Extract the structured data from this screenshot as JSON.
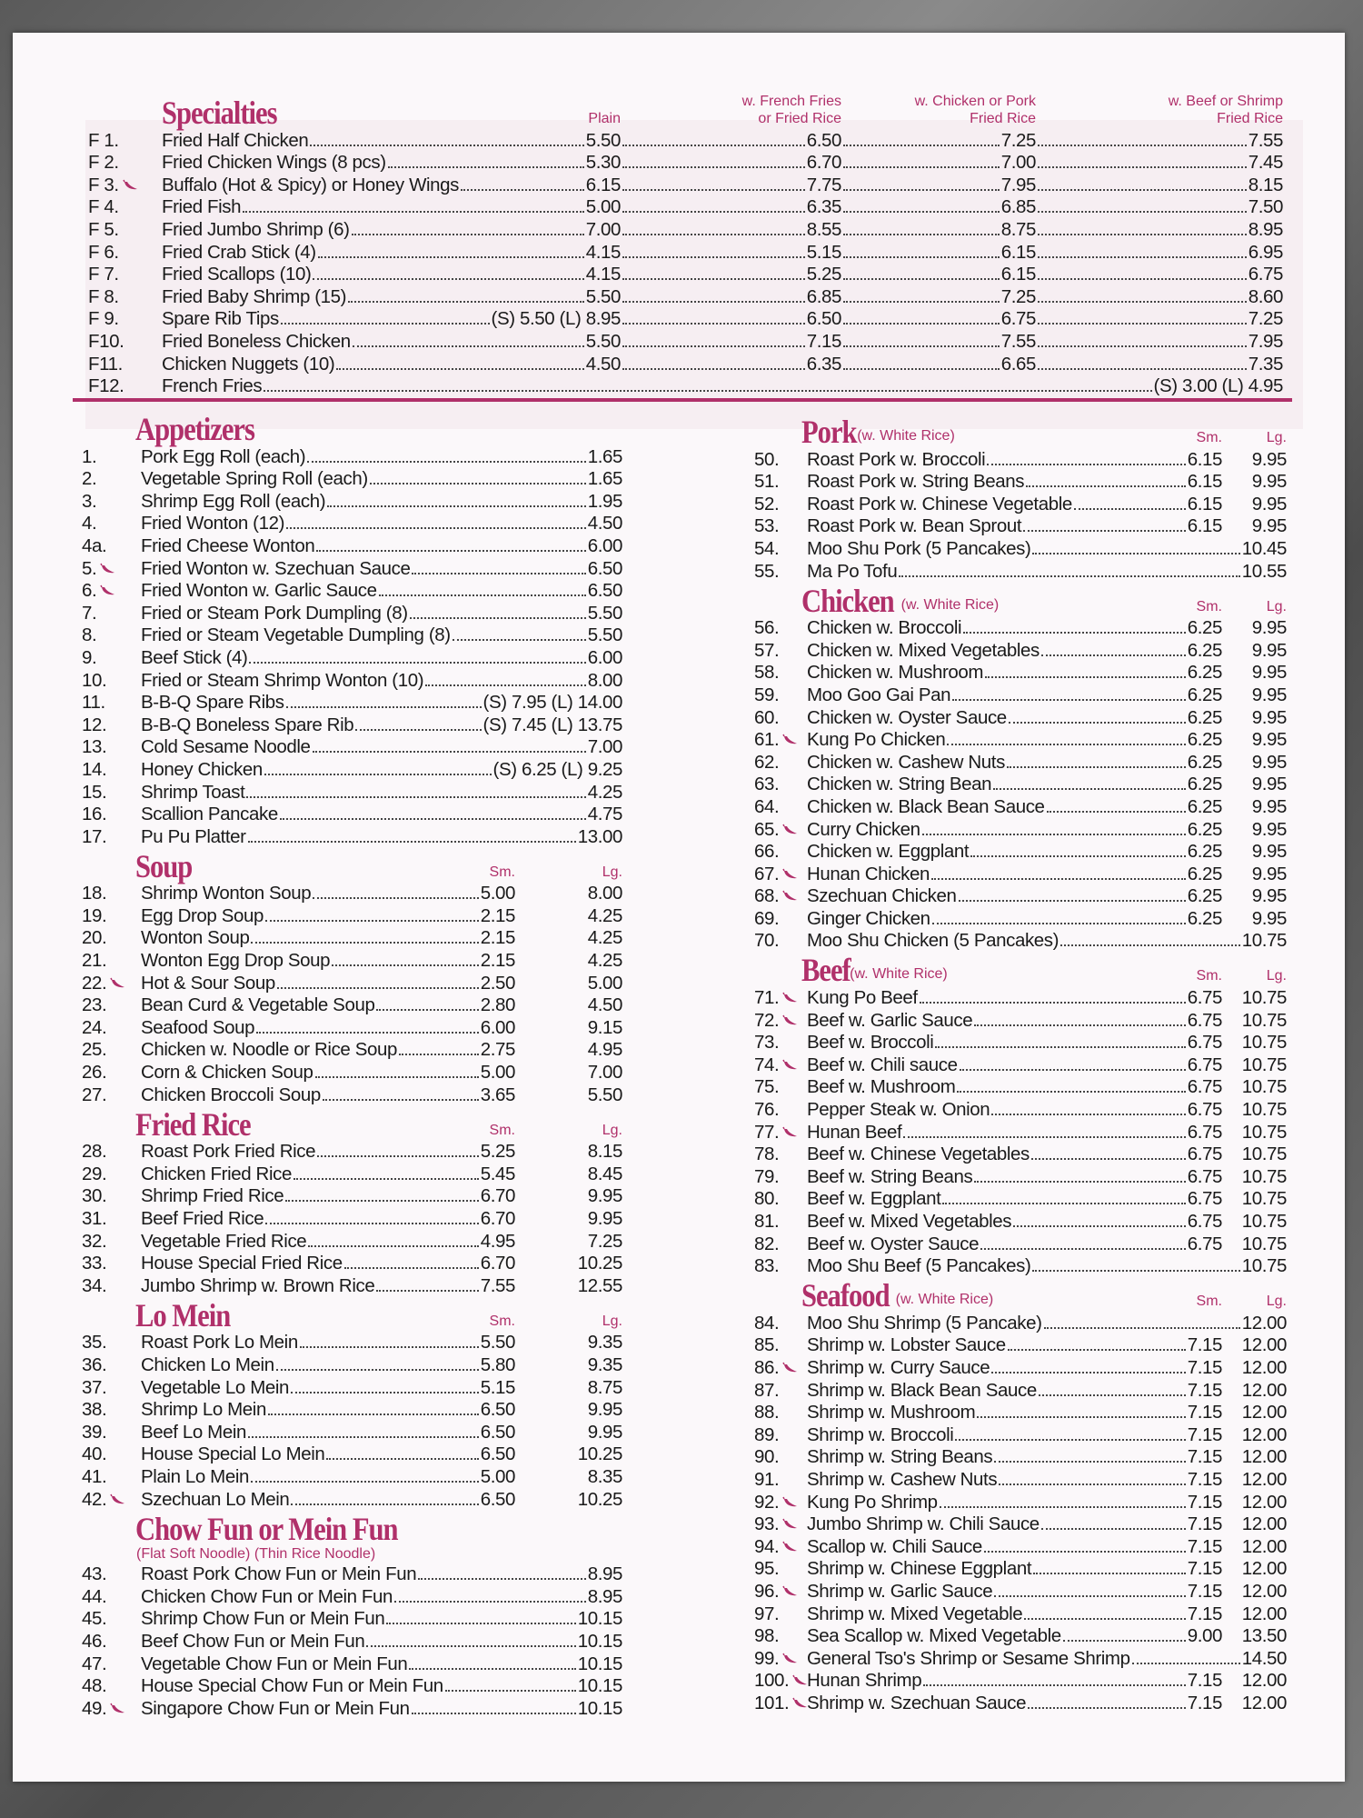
{
  "colors": {
    "accent": "#b0306a",
    "paper": "#fbf8fa"
  },
  "icons": {
    "spicy": "hot-pepper-icon"
  },
  "specialties": {
    "title": "Specialties",
    "cols": [
      "Plain",
      "w. French Fries\nor Fried Rice",
      "w. Chicken or Pork\nFried Rice",
      "w. Beef or Shrimp\nFried Rice"
    ],
    "items": [
      [
        "F 1.",
        0,
        "Fried Half Chicken",
        "5.50",
        "6.50",
        "7.25",
        "7.55"
      ],
      [
        "F 2.",
        0,
        "Fried Chicken Wings (8 pcs)",
        "5.30",
        "6.70",
        "7.00",
        "7.45"
      ],
      [
        "F 3.",
        1,
        "Buffalo (Hot & Spicy) or Honey Wings",
        "6.15",
        "7.75",
        "7.95",
        "8.15"
      ],
      [
        "F 4.",
        0,
        "Fried Fish",
        "5.00",
        "6.35",
        "6.85",
        "7.50"
      ],
      [
        "F 5.",
        0,
        "Fried Jumbo Shrimp (6)",
        "7.00",
        "8.55",
        "8.75",
        "8.95"
      ],
      [
        "F 6.",
        0,
        "Fried Crab Stick (4)",
        "4.15",
        "5.15",
        "6.15",
        "6.95"
      ],
      [
        "F 7.",
        0,
        "Fried Scallops (10)",
        "4.15",
        "5.25",
        "6.15",
        "6.75"
      ],
      [
        "F 8.",
        0,
        "Fried Baby Shrimp (15)",
        "5.50",
        "6.85",
        "7.25",
        "8.60"
      ],
      [
        "F 9.",
        0,
        "Spare Rib Tips",
        "(S) 5.50  (L) 8.95",
        "6.50",
        "6.75",
        "7.25"
      ],
      [
        "F10.",
        0,
        "Fried Boneless Chicken",
        "5.50",
        "7.15",
        "7.55",
        "7.95"
      ],
      [
        "F11.",
        0,
        "Chicken Nuggets (10)",
        "4.50",
        "6.35",
        "6.65",
        "7.35"
      ],
      [
        "F12.",
        0,
        "French Fries",
        "(S) 3.00  (L) 4.95"
      ]
    ]
  },
  "left": [
    {
      "title": "Appetizers",
      "items": [
        [
          "1.",
          0,
          "Pork Egg Roll (each)",
          "1.65"
        ],
        [
          "2.",
          0,
          "Vegetable Spring Roll (each)",
          "1.65"
        ],
        [
          "3.",
          0,
          "Shrimp Egg Roll (each)",
          "1.95"
        ],
        [
          "4.",
          0,
          "Fried Wonton (12)",
          "4.50"
        ],
        [
          "4a.",
          0,
          "Fried Cheese Wonton",
          "6.00"
        ],
        [
          "5.",
          1,
          "Fried Wonton w. Szechuan Sauce",
          "6.50"
        ],
        [
          "6.",
          1,
          "Fried Wonton w. Garlic Sauce",
          "6.50"
        ],
        [
          "7.",
          0,
          "Fried or Steam Pork Dumpling (8)",
          "5.50"
        ],
        [
          "8.",
          0,
          "Fried or Steam Vegetable Dumpling (8)",
          "5.50"
        ],
        [
          "9.",
          0,
          "Beef Stick (4)",
          "6.00"
        ],
        [
          "10.",
          0,
          "Fried or Steam Shrimp Wonton (10)",
          "8.00"
        ],
        [
          "11.",
          0,
          "B-B-Q Spare Ribs",
          "(S) 7.95  (L) 14.00"
        ],
        [
          "12.",
          0,
          "B-B-Q Boneless Spare Rib",
          "(S) 7.45  (L) 13.75"
        ],
        [
          "13.",
          0,
          "Cold Sesame Noodle",
          "7.00"
        ],
        [
          "14.",
          0,
          "Honey Chicken",
          "(S) 6.25  (L) 9.25"
        ],
        [
          "15.",
          0,
          "Shrimp Toast",
          "4.25"
        ],
        [
          "16.",
          0,
          "Scallion Pancake",
          "4.75"
        ],
        [
          "17.",
          0,
          "Pu Pu Platter",
          "13.00"
        ]
      ]
    },
    {
      "title": "Soup",
      "sm": "Sm.",
      "lg": "Lg.",
      "items": [
        [
          "18.",
          0,
          "Shrimp Wonton Soup",
          "5.00",
          "8.00"
        ],
        [
          "19.",
          0,
          "Egg Drop Soup",
          "2.15",
          "4.25"
        ],
        [
          "20.",
          0,
          "Wonton Soup",
          "2.15",
          "4.25"
        ],
        [
          "21.",
          0,
          "Wonton Egg Drop Soup",
          "2.15",
          "4.25"
        ],
        [
          "22.",
          1,
          "Hot & Sour Soup",
          "2.50",
          "5.00"
        ],
        [
          "23.",
          0,
          "Bean Curd & Vegetable Soup",
          "2.80",
          "4.50"
        ],
        [
          "24.",
          0,
          "Seafood Soup",
          "6.00",
          "9.15"
        ],
        [
          "25.",
          0,
          "Chicken w. Noodle or Rice Soup",
          "2.75",
          "4.95"
        ],
        [
          "26.",
          0,
          "Corn & Chicken Soup",
          "5.00",
          "7.00"
        ],
        [
          "27.",
          0,
          "Chicken Broccoli Soup",
          "3.65",
          "5.50"
        ]
      ]
    },
    {
      "title": "Fried Rice",
      "sm": "Sm.",
      "lg": "Lg.",
      "items": [
        [
          "28.",
          0,
          "Roast Pork Fried Rice",
          "5.25",
          "8.15"
        ],
        [
          "29.",
          0,
          "Chicken Fried Rice",
          "5.45",
          "8.45"
        ],
        [
          "30.",
          0,
          "Shrimp Fried Rice",
          "6.70",
          "9.95"
        ],
        [
          "31.",
          0,
          "Beef Fried Rice",
          "6.70",
          "9.95"
        ],
        [
          "32.",
          0,
          "Vegetable Fried Rice",
          "4.95",
          "7.25"
        ],
        [
          "33.",
          0,
          "House Special Fried Rice",
          "6.70",
          "10.25"
        ],
        [
          "34.",
          0,
          "Jumbo Shrimp w. Brown Rice",
          "7.55",
          "12.55"
        ]
      ]
    },
    {
      "title": "Lo Mein",
      "sm": "Sm.",
      "lg": "Lg.",
      "items": [
        [
          "35.",
          0,
          "Roast Pork Lo Mein",
          "5.50",
          "9.35"
        ],
        [
          "36.",
          0,
          "Chicken Lo Mein",
          "5.80",
          "9.35"
        ],
        [
          "37.",
          0,
          "Vegetable Lo Mein",
          "5.15",
          "8.75"
        ],
        [
          "38.",
          0,
          "Shrimp Lo Mein",
          "6.50",
          "9.95"
        ],
        [
          "39.",
          0,
          "Beef Lo Mein",
          "6.50",
          "9.95"
        ],
        [
          "40.",
          0,
          "House Special Lo Mein",
          "6.50",
          "10.25"
        ],
        [
          "41.",
          0,
          "Plain Lo Mein",
          "5.00",
          "8.35"
        ],
        [
          "42.",
          1,
          "Szechuan Lo Mein",
          "6.50",
          "10.25"
        ]
      ]
    },
    {
      "title": "Chow Fun or Mein Fun",
      "subtitle2": "(Flat Soft Noodle) (Thin Rice Noodle)",
      "items": [
        [
          "43.",
          0,
          "Roast Pork Chow Fun or Mein Fun",
          "8.95"
        ],
        [
          "44.",
          0,
          "Chicken Chow Fun or Mein Fun",
          "8.95"
        ],
        [
          "45.",
          0,
          "Shrimp Chow Fun or Mein Fun",
          "10.15"
        ],
        [
          "46.",
          0,
          "Beef Chow Fun or Mein Fun",
          "10.15"
        ],
        [
          "47.",
          0,
          "Vegetable Chow Fun or Mein Fun",
          "10.15"
        ],
        [
          "48.",
          0,
          "House Special Chow Fun or Mein Fun",
          "10.15"
        ],
        [
          "49.",
          1,
          "Singapore Chow Fun or Mein Fun",
          "10.15"
        ]
      ]
    }
  ],
  "right": [
    {
      "title": "Pork",
      "subtitle": "(w. White Rice)",
      "sm": "Sm.",
      "lg": "Lg.",
      "items": [
        [
          "50.",
          0,
          "Roast Pork w. Broccoli",
          "6.15",
          "9.95"
        ],
        [
          "51.",
          0,
          "Roast Pork w. String Beans",
          "6.15",
          "9.95"
        ],
        [
          "52.",
          0,
          "Roast Pork w. Chinese Vegetable",
          "6.15",
          "9.95"
        ],
        [
          "53.",
          0,
          "Roast Pork w. Bean Sprout",
          "6.15",
          "9.95"
        ],
        [
          "54.",
          0,
          "Moo Shu Pork (5 Pancakes)",
          "10.45"
        ],
        [
          "55.",
          0,
          "Ma Po Tofu",
          "10.55"
        ]
      ]
    },
    {
      "title": "Chicken",
      "subtitle": "(w. White Rice)",
      "sm": "Sm.",
      "lg": "Lg.",
      "items": [
        [
          "56.",
          0,
          "Chicken w. Broccoli",
          "6.25",
          "9.95"
        ],
        [
          "57.",
          0,
          "Chicken w. Mixed Vegetables",
          "6.25",
          "9.95"
        ],
        [
          "58.",
          0,
          "Chicken w. Mushroom",
          "6.25",
          "9.95"
        ],
        [
          "59.",
          0,
          "Moo Goo Gai Pan",
          "6.25",
          "9.95"
        ],
        [
          "60.",
          0,
          "Chicken w. Oyster Sauce",
          "6.25",
          "9.95"
        ],
        [
          "61.",
          1,
          "Kung Po Chicken",
          "6.25",
          "9.95"
        ],
        [
          "62.",
          0,
          "Chicken w. Cashew Nuts",
          "6.25",
          "9.95"
        ],
        [
          "63.",
          0,
          "Chicken w. String Bean",
          "6.25",
          "9.95"
        ],
        [
          "64.",
          0,
          "Chicken w. Black Bean Sauce",
          "6.25",
          "9.95"
        ],
        [
          "65.",
          1,
          "Curry Chicken",
          "6.25",
          "9.95"
        ],
        [
          "66.",
          0,
          "Chicken w. Eggplant",
          "6.25",
          "9.95"
        ],
        [
          "67.",
          1,
          "Hunan Chicken",
          "6.25",
          "9.95"
        ],
        [
          "68.",
          1,
          "Szechuan Chicken",
          "6.25",
          "9.95"
        ],
        [
          "69.",
          0,
          "Ginger Chicken",
          "6.25",
          "9.95"
        ],
        [
          "70.",
          0,
          "Moo Shu Chicken (5 Pancakes)",
          "10.75"
        ]
      ]
    },
    {
      "title": "Beef",
      "subtitle": "(w. White Rice)",
      "sm": "Sm.",
      "lg": "Lg.",
      "items": [
        [
          "71.",
          1,
          "Kung Po Beef",
          "6.75",
          "10.75"
        ],
        [
          "72.",
          1,
          "Beef w. Garlic Sauce",
          "6.75",
          "10.75"
        ],
        [
          "73.",
          0,
          "Beef w. Broccoli",
          "6.75",
          "10.75"
        ],
        [
          "74.",
          1,
          "Beef w. Chili sauce",
          "6.75",
          "10.75"
        ],
        [
          "75.",
          0,
          "Beef w. Mushroom",
          "6.75",
          "10.75"
        ],
        [
          "76.",
          0,
          "Pepper Steak w. Onion",
          "6.75",
          "10.75"
        ],
        [
          "77.",
          1,
          "Hunan Beef",
          "6.75",
          "10.75"
        ],
        [
          "78.",
          0,
          "Beef w. Chinese Vegetables",
          "6.75",
          "10.75"
        ],
        [
          "79.",
          0,
          "Beef w. String Beans",
          "6.75",
          "10.75"
        ],
        [
          "80.",
          0,
          "Beef w. Eggplant",
          "6.75",
          "10.75"
        ],
        [
          "81.",
          0,
          "Beef w. Mixed Vegetables",
          "6.75",
          "10.75"
        ],
        [
          "82.",
          0,
          "Beef w. Oyster Sauce",
          "6.75",
          "10.75"
        ],
        [
          "83.",
          0,
          "Moo Shu Beef (5 Pancakes)",
          "10.75"
        ]
      ]
    },
    {
      "title": "Seafood",
      "subtitle": "(w. White Rice)",
      "sm": "Sm.",
      "lg": "Lg.",
      "items": [
        [
          "84.",
          0,
          "Moo Shu Shrimp (5 Pancake)",
          "12.00"
        ],
        [
          "85.",
          0,
          "Shrimp w. Lobster Sauce",
          "7.15",
          "12.00"
        ],
        [
          "86.",
          1,
          "Shrimp w. Curry Sauce",
          "7.15",
          "12.00"
        ],
        [
          "87.",
          0,
          "Shrimp w. Black Bean Sauce",
          "7.15",
          "12.00"
        ],
        [
          "88.",
          0,
          "Shrimp w. Mushroom",
          "7.15",
          "12.00"
        ],
        [
          "89.",
          0,
          "Shrimp w. Broccoli",
          "7.15",
          "12.00"
        ],
        [
          "90.",
          0,
          "Shrimp w. String Beans",
          "7.15",
          "12.00"
        ],
        [
          "91.",
          0,
          "Shrimp w. Cashew Nuts",
          "7.15",
          "12.00"
        ],
        [
          "92.",
          1,
          "Kung Po Shrimp",
          "7.15",
          "12.00"
        ],
        [
          "93.",
          1,
          "Jumbo Shrimp w. Chili Sauce",
          "7.15",
          "12.00"
        ],
        [
          "94.",
          1,
          "Scallop w. Chili Sauce",
          "7.15",
          "12.00"
        ],
        [
          "95.",
          0,
          "Shrimp w. Chinese Eggplant",
          "7.15",
          "12.00"
        ],
        [
          "96.",
          1,
          "Shrimp w. Garlic Sauce",
          "7.15",
          "12.00"
        ],
        [
          "97.",
          0,
          "Shrimp w. Mixed Vegetable",
          "7.15",
          "12.00"
        ],
        [
          "98.",
          0,
          "Sea Scallop w. Mixed Vegetable",
          "9.00",
          "13.50"
        ],
        [
          "99.",
          1,
          "General Tso's Shrimp or Sesame Shrimp",
          "14.50"
        ],
        [
          "100.",
          1,
          "Hunan Shrimp",
          "7.15",
          "12.00"
        ],
        [
          "101.",
          1,
          "Shrimp w. Szechuan Sauce",
          "7.15",
          "12.00"
        ]
      ]
    }
  ]
}
